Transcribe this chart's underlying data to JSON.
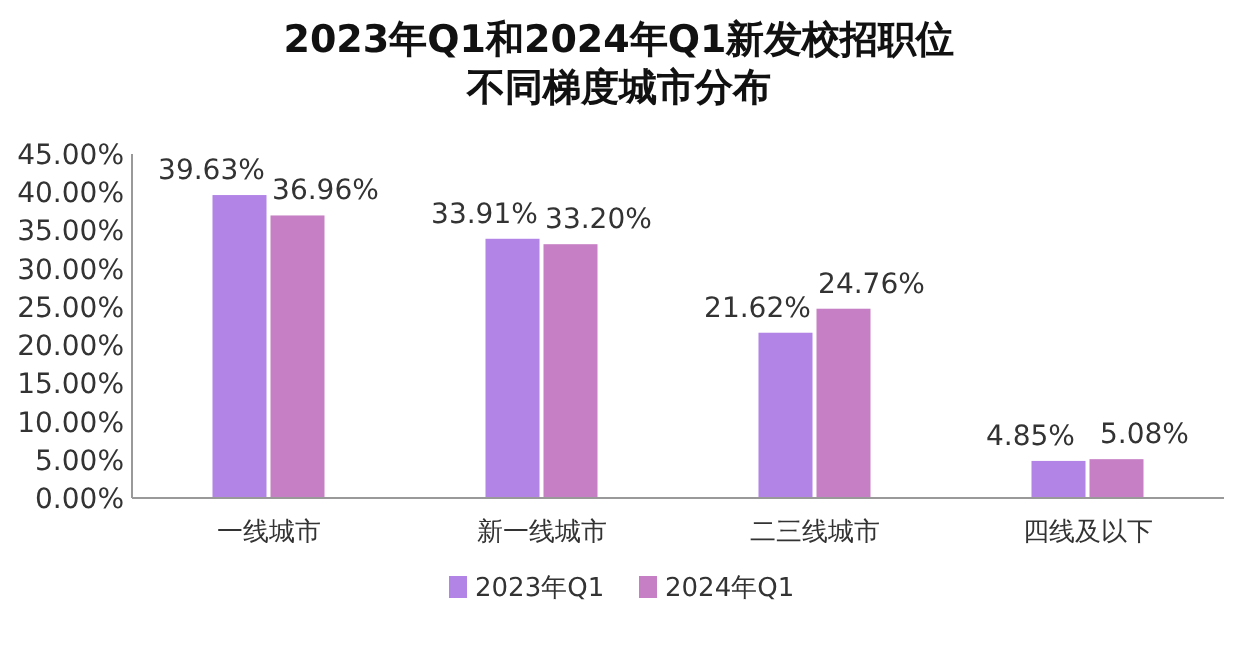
{
  "chart_data": {
    "type": "bar",
    "title": "2023年Q1和2024年Q1新发校招职位",
    "subtitle": "不同梯度城市分布",
    "categories": [
      "一线城市",
      "新一线城市",
      "二三线城市",
      "四线及以下"
    ],
    "series": [
      {
        "name": "2023年Q1",
        "color": "#b184e6",
        "values": [
          39.63,
          33.91,
          21.62,
          4.85
        ],
        "value_labels": [
          "39.63%",
          "33.91%",
          "21.62%",
          "4.85%"
        ]
      },
      {
        "name": "2024年Q1",
        "color": "#c67ec4",
        "values": [
          36.96,
          33.2,
          24.76,
          5.08
        ],
        "value_labels": [
          "36.96%",
          "33.20%",
          "24.76%",
          "5.08%"
        ]
      }
    ],
    "ylim": [
      0,
      45
    ],
    "yticks": [
      {
        "value": 0,
        "label": "0.00%"
      },
      {
        "value": 5,
        "label": "5.00%"
      },
      {
        "value": 10,
        "label": "10.00%"
      },
      {
        "value": 15,
        "label": "15.00%"
      },
      {
        "value": 20,
        "label": "20.00%"
      },
      {
        "value": 25,
        "label": "25.00%"
      },
      {
        "value": 30,
        "label": "30.00%"
      },
      {
        "value": 35,
        "label": "35.00%"
      },
      {
        "value": 40,
        "label": "40.00%"
      },
      {
        "value": 45,
        "label": "45.00%"
      }
    ],
    "legend": "bottom"
  }
}
